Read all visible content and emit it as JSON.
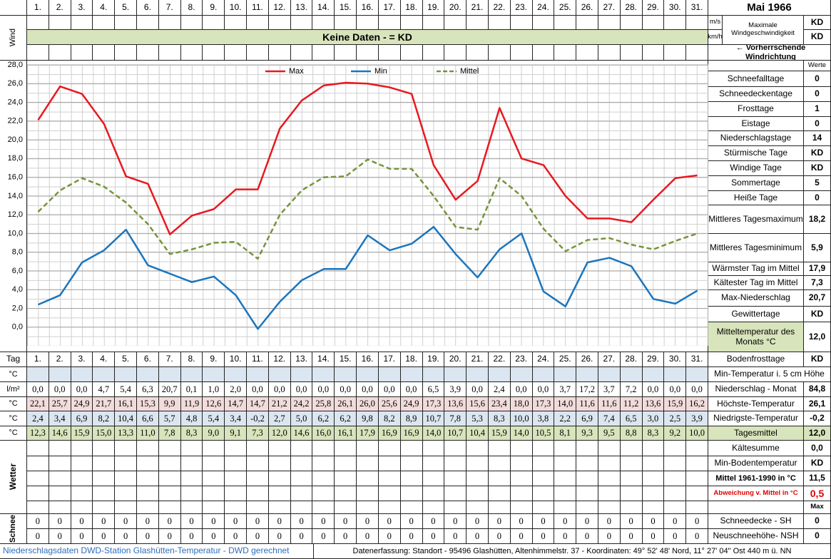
{
  "header": {
    "title": "Mai 1966"
  },
  "wind": {
    "label": "Wind",
    "note": "Keine Daten -  = KD",
    "units": [
      "m/s",
      "km/h"
    ],
    "max_label": "Maximale Windgeschwindigkeit",
    "max_values": [
      "KD",
      "KD"
    ],
    "direction": "← Vorherrschende Windrichtung"
  },
  "chart_data": {
    "type": "line",
    "categories": [
      "1.",
      "2.",
      "3.",
      "4.",
      "5.",
      "6.",
      "7.",
      "8.",
      "9.",
      "10.",
      "11.",
      "12.",
      "13.",
      "14.",
      "15.",
      "16.",
      "17.",
      "18.",
      "19.",
      "20.",
      "21.",
      "22.",
      "23.",
      "24.",
      "25.",
      "26.",
      "27.",
      "28.",
      "29.",
      "30.",
      "31."
    ],
    "series": [
      {
        "name": "Max",
        "color": "#e8191f",
        "line_style": "solid",
        "values": [
          22.1,
          25.7,
          24.9,
          21.7,
          16.1,
          15.3,
          9.9,
          11.9,
          12.6,
          14.7,
          14.7,
          21.2,
          24.2,
          25.8,
          26.1,
          26.0,
          25.6,
          24.9,
          17.3,
          13.6,
          15.6,
          23.4,
          18.0,
          17.3,
          14.0,
          11.6,
          11.6,
          11.2,
          13.6,
          15.9,
          16.2
        ],
        "value_labels": [
          "22,1",
          "25,7",
          "24,9",
          "21,7",
          "16,1",
          "15,3",
          "9,9",
          "11,9",
          "12,6",
          "14,7",
          "14,7",
          "21,2",
          "24,2",
          "25,8",
          "26,1",
          "26,0",
          "25,6",
          "24,9",
          "17,3",
          "13,6",
          "15,6",
          "23,4",
          "18,0",
          "17,3",
          "14,0",
          "11,6",
          "11,6",
          "11,2",
          "13,6",
          "15,9",
          "16,2"
        ]
      },
      {
        "name": "Min",
        "color": "#1b75bc",
        "line_style": "solid",
        "values": [
          2.4,
          3.4,
          6.9,
          8.2,
          10.4,
          6.6,
          5.7,
          4.8,
          5.4,
          3.4,
          -0.2,
          2.7,
          5.0,
          6.2,
          6.2,
          9.8,
          8.2,
          8.9,
          10.7,
          7.8,
          5.3,
          8.3,
          10.0,
          3.8,
          2.2,
          6.9,
          7.4,
          6.5,
          3.0,
          2.5,
          3.9
        ],
        "value_labels": [
          "2,4",
          "3,4",
          "6,9",
          "8,2",
          "10,4",
          "6,6",
          "5,7",
          "4,8",
          "5,4",
          "3,4",
          "-0,2",
          "2,7",
          "5,0",
          "6,2",
          "6,2",
          "9,8",
          "8,2",
          "8,9",
          "10,7",
          "7,8",
          "5,3",
          "8,3",
          "10,0",
          "3,8",
          "2,2",
          "6,9",
          "7,4",
          "6,5",
          "3,0",
          "2,5",
          "3,9"
        ]
      },
      {
        "name": "Mittel",
        "color": "#77933c",
        "line_style": "dashed",
        "values": [
          12.3,
          14.6,
          15.9,
          15.0,
          13.3,
          11.0,
          7.8,
          8.3,
          9.0,
          9.1,
          7.3,
          12.0,
          14.6,
          16.0,
          16.1,
          17.9,
          16.9,
          16.9,
          14.0,
          10.7,
          10.4,
          15.9,
          14.0,
          10.5,
          8.1,
          9.3,
          9.5,
          8.8,
          8.3,
          9.2,
          10.0
        ],
        "value_labels": [
          "12,3",
          "14,6",
          "15,9",
          "15,0",
          "13,3",
          "11,0",
          "7,8",
          "8,3",
          "9,0",
          "9,1",
          "7,3",
          "12,0",
          "14,6",
          "16,0",
          "16,1",
          "17,9",
          "16,9",
          "16,9",
          "14,0",
          "10,7",
          "10,4",
          "15,9",
          "14,0",
          "10,5",
          "8,1",
          "9,3",
          "9,5",
          "8,8",
          "8,3",
          "9,2",
          "10,0"
        ]
      }
    ],
    "ylim": [
      -2,
      28
    ],
    "yticks": [
      {
        "value": 0,
        "label": "0,0"
      },
      {
        "value": 2,
        "label": "2,0"
      },
      {
        "value": 4,
        "label": "4,0"
      },
      {
        "value": 6,
        "label": "6,0"
      },
      {
        "value": 8,
        "label": "8,0"
      },
      {
        "value": 10,
        "label": "10,0"
      },
      {
        "value": 12,
        "label": "12,0"
      },
      {
        "value": 14,
        "label": "14,0"
      },
      {
        "value": 16,
        "label": "16,0"
      },
      {
        "value": 18,
        "label": "18,0"
      },
      {
        "value": 20,
        "label": "20,0"
      },
      {
        "value": 22,
        "label": "22,0"
      },
      {
        "value": 24,
        "label": "24,0"
      },
      {
        "value": 26,
        "label": "26,0"
      },
      {
        "value": 28,
        "label": "28,0"
      }
    ],
    "grid": true,
    "legend": "top"
  },
  "table": {
    "tag": "Tag",
    "units": [
      "°C",
      "l/m²",
      "°C",
      "°C",
      "°C"
    ],
    "precip": [
      "0,0",
      "0,0",
      "0,0",
      "4,7",
      "5,4",
      "6,3",
      "20,7",
      "0,1",
      "1,0",
      "2,0",
      "0,0",
      "0,0",
      "0,0",
      "0,0",
      "0,0",
      "0,0",
      "0,0",
      "0,0",
      "6,5",
      "3,9",
      "0,0",
      "2,4",
      "0,0",
      "0,0",
      "3,7",
      "17,2",
      "3,7",
      "7,2",
      "0,0",
      "0,0",
      "0,0"
    ],
    "wetter": "Wetter",
    "schnee": "Schnee",
    "snow": [
      [
        0,
        0,
        0,
        0,
        0,
        0,
        0,
        0,
        0,
        0,
        0,
        0,
        0,
        0,
        0,
        0,
        0,
        0,
        0,
        0,
        0,
        0,
        0,
        0,
        0,
        0,
        0,
        0,
        0,
        0,
        0
      ],
      [
        0,
        0,
        0,
        0,
        0,
        0,
        0,
        0,
        0,
        0,
        0,
        0,
        0,
        0,
        0,
        0,
        0,
        0,
        0,
        0,
        0,
        0,
        0,
        0,
        0,
        0,
        0,
        0,
        0,
        0,
        0
      ]
    ]
  },
  "stats": {
    "header": "Werte",
    "rows": [
      {
        "label": "Schneefalltage",
        "value": 0
      },
      {
        "label": "Schneedeckentage",
        "value": 0
      },
      {
        "label": "Frosttage",
        "value": 1
      },
      {
        "label": "Eistage",
        "value": 0
      },
      {
        "label": "Niederschlagstage",
        "value": 14
      },
      {
        "label": "Stürmische Tage",
        "value": "KD"
      },
      {
        "label": "Windige Tage",
        "value": "KD"
      },
      {
        "label": "Sommertage",
        "value": 5
      },
      {
        "label": "Heiße Tage",
        "value": 0
      },
      {
        "label": "Mittleres Tagesmaximum",
        "value": "18,2"
      },
      {
        "label": "Mittleres Tagesminimum",
        "value": "5,9"
      },
      {
        "label": "Wärmster Tag im Mittel",
        "value": "17,9"
      },
      {
        "label": "Kältester Tag im Mittel",
        "value": "7,3"
      },
      {
        "label": "Max-Niederschlag",
        "value": "20,7"
      },
      {
        "label": "Gewittertage",
        "value": "KD"
      },
      {
        "label": "Mitteltemperatur des Monats °C",
        "value": "12,0"
      }
    ]
  },
  "summary": [
    {
      "label": "Bodenfrosttage",
      "value": "KD"
    },
    {
      "label": "Min-Temperatur i. 5 cm Höhe"
    },
    {
      "label": "Niederschlag - Monat",
      "value": "84,8"
    },
    {
      "label": "Höchste-Temperatur",
      "value": "26,1"
    },
    {
      "label": "Niedrigste-Temperatur",
      "value": "-0,2"
    },
    {
      "label": "Tagesmittel",
      "value": "12,0"
    },
    {
      "label": "Kältesumme",
      "value": "0,0"
    },
    {
      "label": "Min-Bodentemperatur",
      "value": "KD"
    },
    {
      "label": "Mittel 1961-1990 in °C",
      "value": "11,5"
    },
    {
      "label": "Abweichung v. Mittel in °C",
      "value": "0,5"
    },
    {
      "value": "Max"
    },
    {
      "label": "Schneedecke -  SH",
      "value": 0
    },
    {
      "label": "Neuschneehöhe- NSH",
      "value": 0
    }
  ],
  "footer": {
    "source": "Niederschlagsdaten DWD-Station Glashütten-Temperatur -  DWD gerechnet",
    "location": "Datenerfassung: Standort -  95496 Glashütten, Altenhimmelstr. 37 - Koordinaten: 49° 52' 48' Nord,  11° 27' 04\" Ost  440 m ü. NN"
  }
}
